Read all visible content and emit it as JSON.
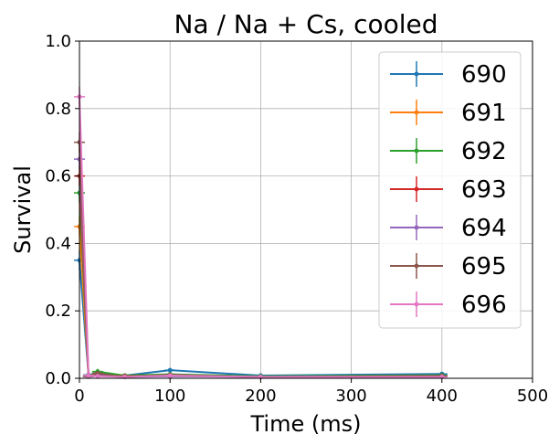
{
  "chart_data": {
    "type": "line",
    "title": "Na / Na + Cs, cooled",
    "xlabel": "Time (ms)",
    "ylabel": "Survival",
    "xlim": [
      0,
      500
    ],
    "ylim": [
      0,
      1.0
    ],
    "xticks": [
      0,
      100,
      200,
      300,
      400,
      500
    ],
    "yticks": [
      0.0,
      0.2,
      0.4,
      0.6,
      0.8,
      1.0
    ],
    "xtick_labels": [
      "0",
      "100",
      "200",
      "300",
      "400",
      "500"
    ],
    "ytick_labels": [
      "0.0",
      "0.2",
      "0.4",
      "0.6",
      "0.8",
      "1.0"
    ],
    "grid": true,
    "legend_position": "top-right",
    "x": [
      0,
      10,
      20,
      50,
      100,
      200,
      400
    ],
    "series": [
      {
        "name": "690",
        "color": "#1f77b4",
        "values": [
          0.35,
          0.01,
          0.015,
          0.008,
          0.024,
          0.008,
          0.013
        ],
        "yerr": [
          0.03,
          0.005,
          0.006,
          0.004,
          0.006,
          0.004,
          0.005
        ]
      },
      {
        "name": "691",
        "color": "#ff7f0e",
        "values": [
          0.45,
          0.008,
          0.012,
          0.006,
          0.01,
          0.005,
          0.008
        ],
        "yerr": [
          0.03,
          0.004,
          0.005,
          0.003,
          0.004,
          0.003,
          0.004
        ]
      },
      {
        "name": "692",
        "color": "#2ca02c",
        "values": [
          0.55,
          0.005,
          0.02,
          0.008,
          0.012,
          0.006,
          0.009
        ],
        "yerr": [
          0.03,
          0.004,
          0.008,
          0.004,
          0.005,
          0.003,
          0.004
        ]
      },
      {
        "name": "693",
        "color": "#d62728",
        "values": [
          0.6,
          0.005,
          0.01,
          0.006,
          0.008,
          0.004,
          0.005
        ],
        "yerr": [
          0.03,
          0.003,
          0.005,
          0.003,
          0.004,
          0.003,
          0.003
        ]
      },
      {
        "name": "694",
        "color": "#9467bd",
        "values": [
          0.65,
          0.005,
          0.008,
          0.004,
          0.006,
          0.004,
          0.006
        ],
        "yerr": [
          0.03,
          0.003,
          0.004,
          0.003,
          0.003,
          0.003,
          0.003
        ]
      },
      {
        "name": "695",
        "color": "#8c564b",
        "values": [
          0.7,
          0.006,
          0.015,
          0.004,
          0.01,
          0.004,
          0.007
        ],
        "yerr": [
          0.03,
          0.003,
          0.006,
          0.003,
          0.004,
          0.003,
          0.003
        ]
      },
      {
        "name": "696",
        "color": "#e377c2",
        "values": [
          0.835,
          0.008,
          0.006,
          0.004,
          0.008,
          0.004,
          0.004
        ],
        "yerr": [
          0.03,
          0.004,
          0.004,
          0.003,
          0.004,
          0.003,
          0.003
        ]
      }
    ]
  }
}
